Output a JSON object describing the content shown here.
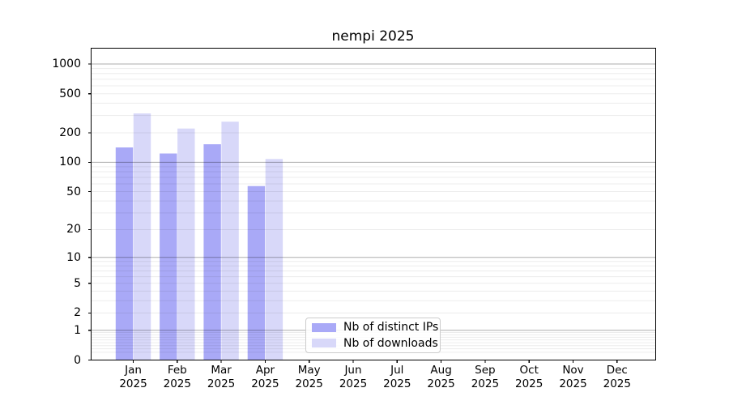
{
  "window": {
    "background": "#ffffff"
  },
  "chart_data": {
    "type": "bar",
    "title": "nempi 2025",
    "xlabel": "",
    "ylabel": "",
    "y_scale": "log1p",
    "ylim": [
      0,
      1450
    ],
    "grid": {
      "show": true,
      "major_line_values": [
        1,
        10,
        100,
        1000
      ],
      "minor_line_values": [
        0.2,
        0.3,
        0.4,
        0.5,
        0.6,
        0.7,
        0.8,
        0.9,
        2,
        3,
        4,
        5,
        6,
        7,
        8,
        9,
        20,
        30,
        40,
        50,
        60,
        70,
        80,
        90,
        200,
        300,
        400,
        500,
        600,
        700,
        800,
        900
      ]
    },
    "y_axis": {
      "tick_values": [
        0,
        1,
        2,
        5,
        10,
        20,
        50,
        100,
        200,
        500,
        1000
      ],
      "tick_labels": [
        "0",
        "1",
        "2",
        "5",
        "10",
        "20",
        "50",
        "100",
        "200",
        "500",
        "1000"
      ]
    },
    "categories": [
      {
        "month": "Jan",
        "year": "2025"
      },
      {
        "month": "Feb",
        "year": "2025"
      },
      {
        "month": "Mar",
        "year": "2025"
      },
      {
        "month": "Apr",
        "year": "2025"
      },
      {
        "month": "May",
        "year": "2025"
      },
      {
        "month": "Jun",
        "year": "2025"
      },
      {
        "month": "Jul",
        "year": "2025"
      },
      {
        "month": "Aug",
        "year": "2025"
      },
      {
        "month": "Sep",
        "year": "2025"
      },
      {
        "month": "Oct",
        "year": "2025"
      },
      {
        "month": "Nov",
        "year": "2025"
      },
      {
        "month": "Dec",
        "year": "2025"
      }
    ],
    "series": [
      {
        "key": "distinct-ips",
        "name": "Nb of distinct IPs",
        "color": "#a9a9f7",
        "values": [
          142,
          123,
          153,
          57,
          null,
          null,
          null,
          null,
          null,
          null,
          null,
          null
        ]
      },
      {
        "key": "downloads",
        "name": "Nb of downloads",
        "color": "#d8d8f9",
        "values": [
          315,
          221,
          260,
          108,
          null,
          null,
          null,
          null,
          null,
          null,
          null,
          null
        ]
      }
    ],
    "legend": {
      "position": "bottom-center",
      "border_color": "#cccccc",
      "background": "#ffffff"
    },
    "colors": {
      "axis": "#000000",
      "text": "#000000",
      "grid_major": "#b0b0b0",
      "grid_minor": "#ececec"
    }
  }
}
